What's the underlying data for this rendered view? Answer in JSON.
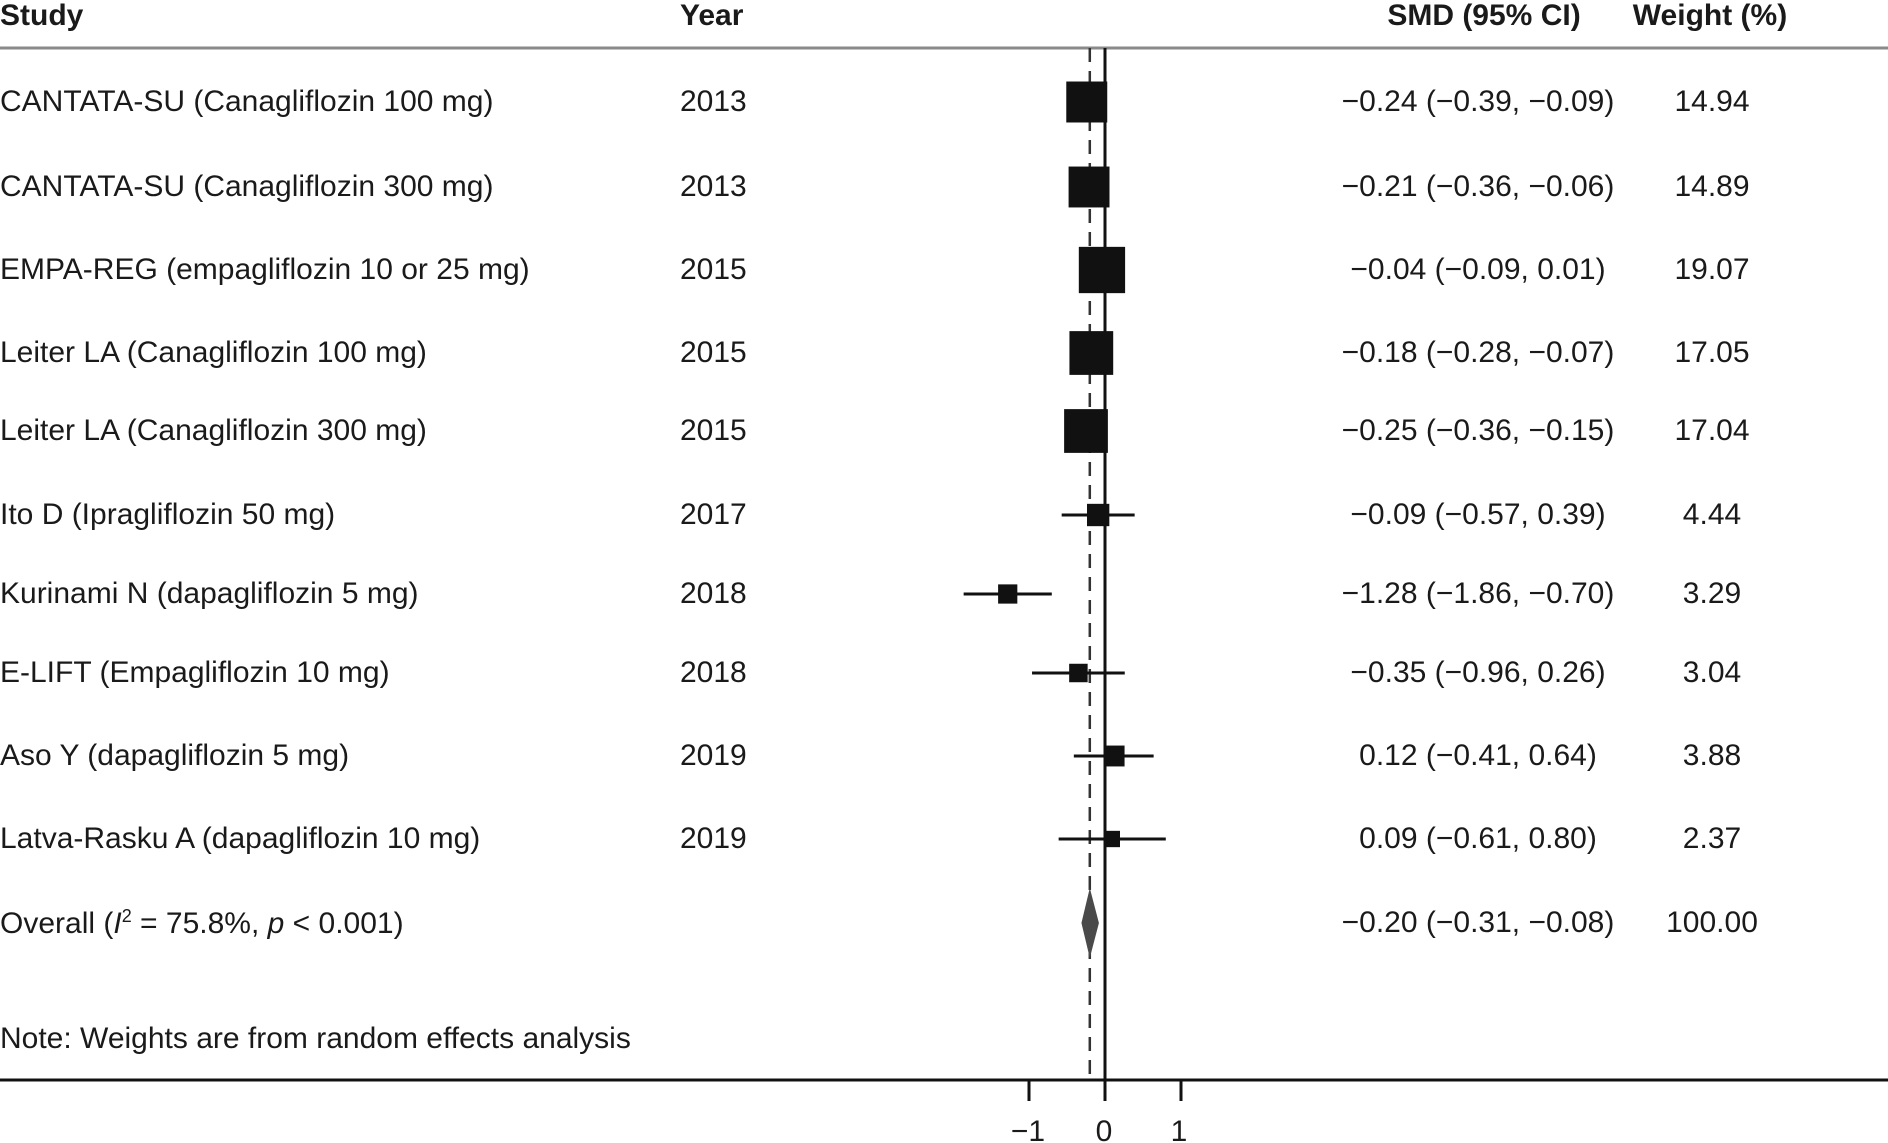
{
  "chart_data": {
    "type": "forest",
    "headers": {
      "study": "Study",
      "year": "Year",
      "smd": "SMD (95% CI)",
      "weight": "Weight (%)"
    },
    "studies": [
      {
        "study": "CANTATA-SU (Canagliflozin 100 mg)",
        "year": "2013",
        "smd": -0.24,
        "lo": -0.39,
        "hi": -0.09,
        "smd_text": "−0.24 (−0.39, −0.09)",
        "weight": 14.94,
        "weight_text": "14.94"
      },
      {
        "study": "CANTATA-SU (Canagliflozin 300 mg)",
        "year": "2013",
        "smd": -0.21,
        "lo": -0.36,
        "hi": -0.06,
        "smd_text": "−0.21 (−0.36, −0.06)",
        "weight": 14.89,
        "weight_text": "14.89"
      },
      {
        "study": "EMPA-REG (empagliflozin 10 or 25 mg)",
        "year": "2015",
        "smd": -0.04,
        "lo": -0.09,
        "hi": 0.01,
        "smd_text": "−0.04 (−0.09, 0.01)",
        "weight": 19.07,
        "weight_text": "19.07"
      },
      {
        "study": "Leiter LA (Canagliflozin 100 mg)",
        "year": "2015",
        "smd": -0.18,
        "lo": -0.28,
        "hi": -0.07,
        "smd_text": "−0.18 (−0.28, −0.07)",
        "weight": 17.05,
        "weight_text": "17.05"
      },
      {
        "study": "Leiter LA (Canagliflozin 300 mg)",
        "year": "2015",
        "smd": -0.25,
        "lo": -0.36,
        "hi": -0.15,
        "smd_text": "−0.25 (−0.36, −0.15)",
        "weight": 17.04,
        "weight_text": "17.04"
      },
      {
        "study": "Ito D (Ipragliflozin 50 mg)",
        "year": "2017",
        "smd": -0.09,
        "lo": -0.57,
        "hi": 0.39,
        "smd_text": "−0.09 (−0.57, 0.39)",
        "weight": 4.44,
        "weight_text": "4.44"
      },
      {
        "study": "Kurinami N (dapagliflozin 5 mg)",
        "year": "2018",
        "smd": -1.28,
        "lo": -1.86,
        "hi": -0.7,
        "smd_text": "−1.28 (−1.86, −0.70)",
        "weight": 3.29,
        "weight_text": "3.29"
      },
      {
        "study": "E-LIFT (Empagliflozin 10 mg)",
        "year": "2018",
        "smd": -0.35,
        "lo": -0.96,
        "hi": 0.26,
        "smd_text": "−0.35 (−0.96, 0.26)",
        "weight": 3.04,
        "weight_text": "3.04"
      },
      {
        "study": "Aso Y (dapagliflozin 5 mg)",
        "year": "2019",
        "smd": 0.12,
        "lo": -0.41,
        "hi": 0.64,
        "smd_text": "0.12 (−0.41, 0.64)",
        "weight": 3.88,
        "weight_text": "3.88"
      },
      {
        "study": "Latva-Rasku A (dapagliflozin 10 mg)",
        "year": "2019",
        "smd": 0.09,
        "lo": -0.61,
        "hi": 0.8,
        "smd_text": "0.09 (−0.61, 0.80)",
        "weight": 2.37,
        "weight_text": "2.37"
      }
    ],
    "overall": {
      "label_prefix": "Overall (",
      "i_symbol": "I",
      "i_sup": "2",
      "label_mid": " = 75.8%, ",
      "p_symbol": "p",
      "label_suffix": " < 0.001)",
      "smd": -0.2,
      "lo": -0.31,
      "hi": -0.08,
      "smd_text": "−0.20 (−0.31, −0.08)",
      "weight_text": "100.00"
    },
    "note": "Note: Weights are from random effects analysis",
    "xaxis": {
      "ticks": [
        -1,
        0,
        1
      ],
      "tick_labels": [
        "−1",
        "0",
        "1"
      ],
      "clip_min": -1.9
    },
    "colors": {
      "square": "#111111",
      "diamond": "#4a4a4a",
      "header_rule": "#8a8a8a"
    }
  }
}
